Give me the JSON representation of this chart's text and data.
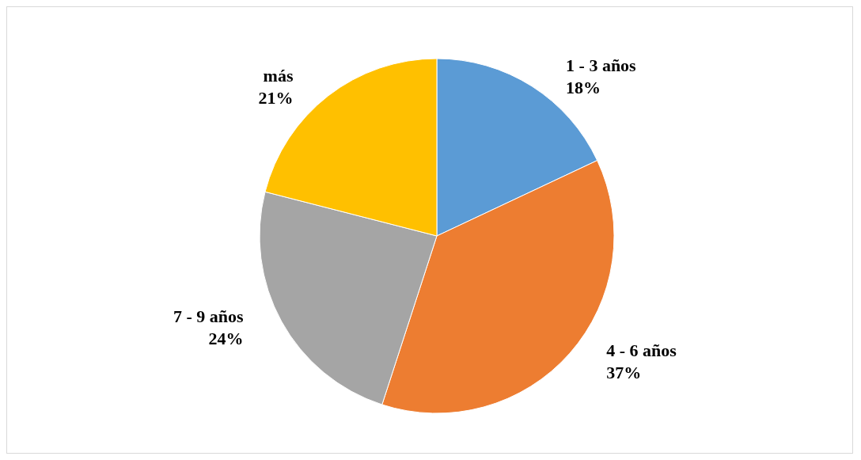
{
  "chart_data": {
    "type": "pie",
    "categories": [
      "1 - 3 años",
      "4 - 6 años",
      "7 - 9 años",
      "más"
    ],
    "values": [
      18,
      37,
      24,
      21
    ],
    "value_labels": [
      "18%",
      "37%",
      "24%",
      "21%"
    ],
    "colors": [
      "#5b9bd5",
      "#ed7d31",
      "#a5a5a5",
      "#ffc000"
    ],
    "legend": false
  }
}
